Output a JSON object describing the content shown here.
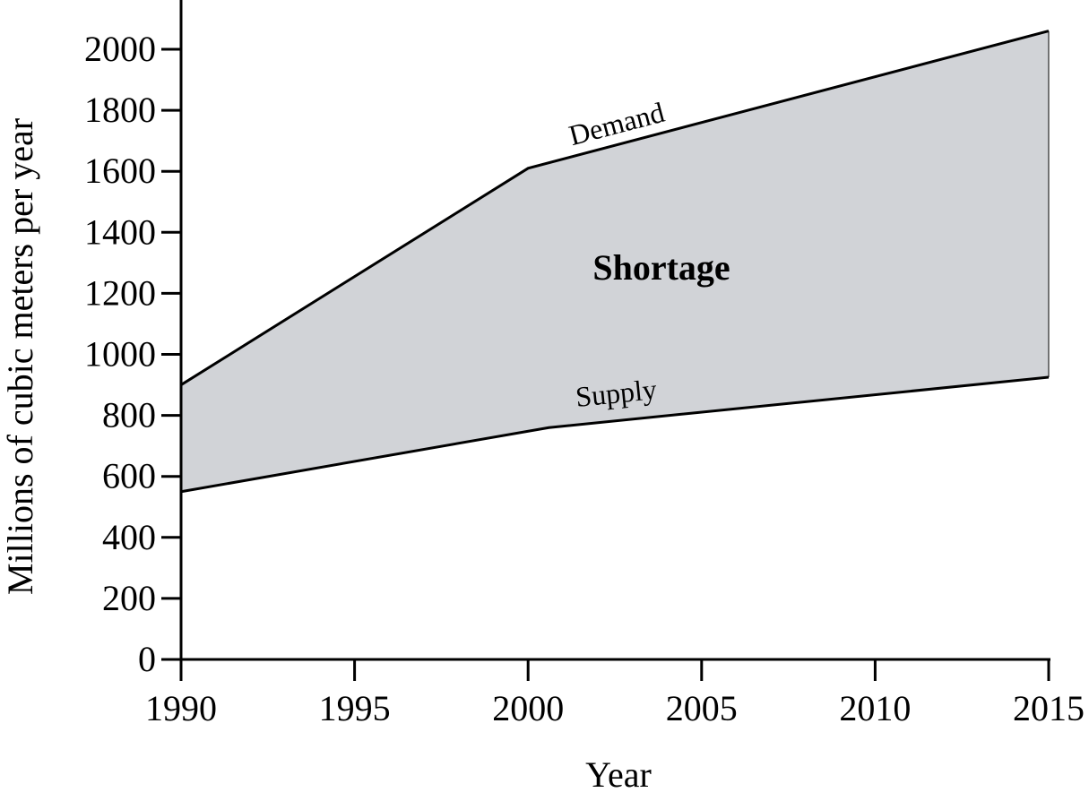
{
  "chart_data": {
    "type": "area",
    "title": "",
    "xlabel": "Year",
    "ylabel": "Millions of cubic meters per year",
    "xlim": [
      1990,
      2015
    ],
    "ylim": [
      0,
      2000
    ],
    "x_ticks": [
      1990,
      1995,
      2000,
      2005,
      2010,
      2015
    ],
    "y_ticks": [
      0,
      200,
      400,
      600,
      800,
      1000,
      1200,
      1400,
      1600,
      1800,
      2000
    ],
    "grid": false,
    "legend": "none",
    "series": [
      {
        "name": "Demand",
        "points": [
          [
            1990,
            900
          ],
          [
            2000,
            1610
          ],
          [
            2015,
            2060
          ]
        ]
      },
      {
        "name": "Supply",
        "points": [
          [
            1990,
            550
          ],
          [
            2000.6,
            760
          ],
          [
            2015,
            925
          ]
        ]
      }
    ],
    "region": {
      "label": "Shortage",
      "between": [
        "Demand",
        "Supply"
      ],
      "fill": "#d1d3d7"
    }
  }
}
